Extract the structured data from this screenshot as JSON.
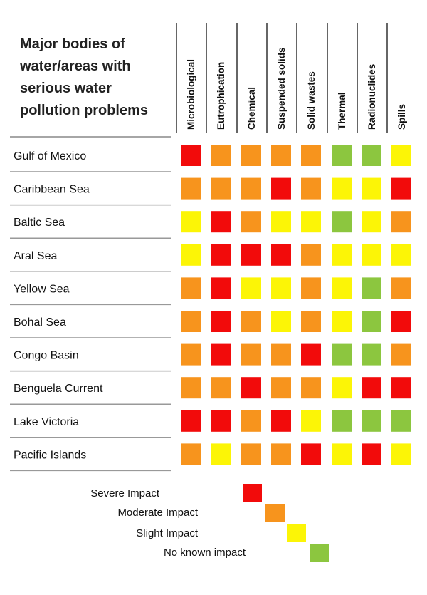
{
  "chart_data": {
    "type": "heatmap",
    "title_lines": [
      "Major bodies of",
      "water/areas with",
      "serious water",
      "pollution problems"
    ],
    "columns": [
      "Microbiological",
      "Eutrophication",
      "Chemical",
      "Suspended solids",
      "Solid wastes",
      "Thermal",
      "Radionuclides",
      "Spills"
    ],
    "rows": [
      "Gulf of Mexico",
      "Caribbean Sea",
      "Baltic Sea",
      "Aral Sea",
      "Yellow Sea",
      "Bohal Sea",
      "Congo Basin",
      "Benguela Current",
      "Lake Victoria",
      "Pacific Islands"
    ],
    "levels": {
      "severe": {
        "label": "Severe Impact",
        "color": "#f20b0b"
      },
      "moderate": {
        "label": "Moderate Impact",
        "color": "#f7941d"
      },
      "slight": {
        "label": "Slight Impact",
        "color": "#fcf506"
      },
      "none": {
        "label": "No known impact",
        "color": "#8cc63f"
      }
    },
    "legend_order": [
      "severe",
      "moderate",
      "slight",
      "none"
    ],
    "values": [
      [
        "severe",
        "moderate",
        "moderate",
        "moderate",
        "moderate",
        "none",
        "none",
        "slight"
      ],
      [
        "moderate",
        "moderate",
        "moderate",
        "severe",
        "moderate",
        "slight",
        "slight",
        "severe"
      ],
      [
        "slight",
        "severe",
        "moderate",
        "slight",
        "slight",
        "none",
        "slight",
        "moderate"
      ],
      [
        "slight",
        "severe",
        "severe",
        "severe",
        "moderate",
        "slight",
        "slight",
        "slight"
      ],
      [
        "moderate",
        "severe",
        "slight",
        "slight",
        "moderate",
        "slight",
        "none",
        "moderate"
      ],
      [
        "moderate",
        "severe",
        "moderate",
        "slight",
        "moderate",
        "slight",
        "none",
        "severe"
      ],
      [
        "moderate",
        "severe",
        "moderate",
        "moderate",
        "severe",
        "none",
        "none",
        "moderate"
      ],
      [
        "moderate",
        "moderate",
        "severe",
        "moderate",
        "moderate",
        "slight",
        "severe",
        "severe"
      ],
      [
        "severe",
        "severe",
        "moderate",
        "severe",
        "slight",
        "none",
        "none",
        "none"
      ],
      [
        "moderate",
        "slight",
        "moderate",
        "moderate",
        "severe",
        "slight",
        "severe",
        "slight"
      ]
    ]
  }
}
